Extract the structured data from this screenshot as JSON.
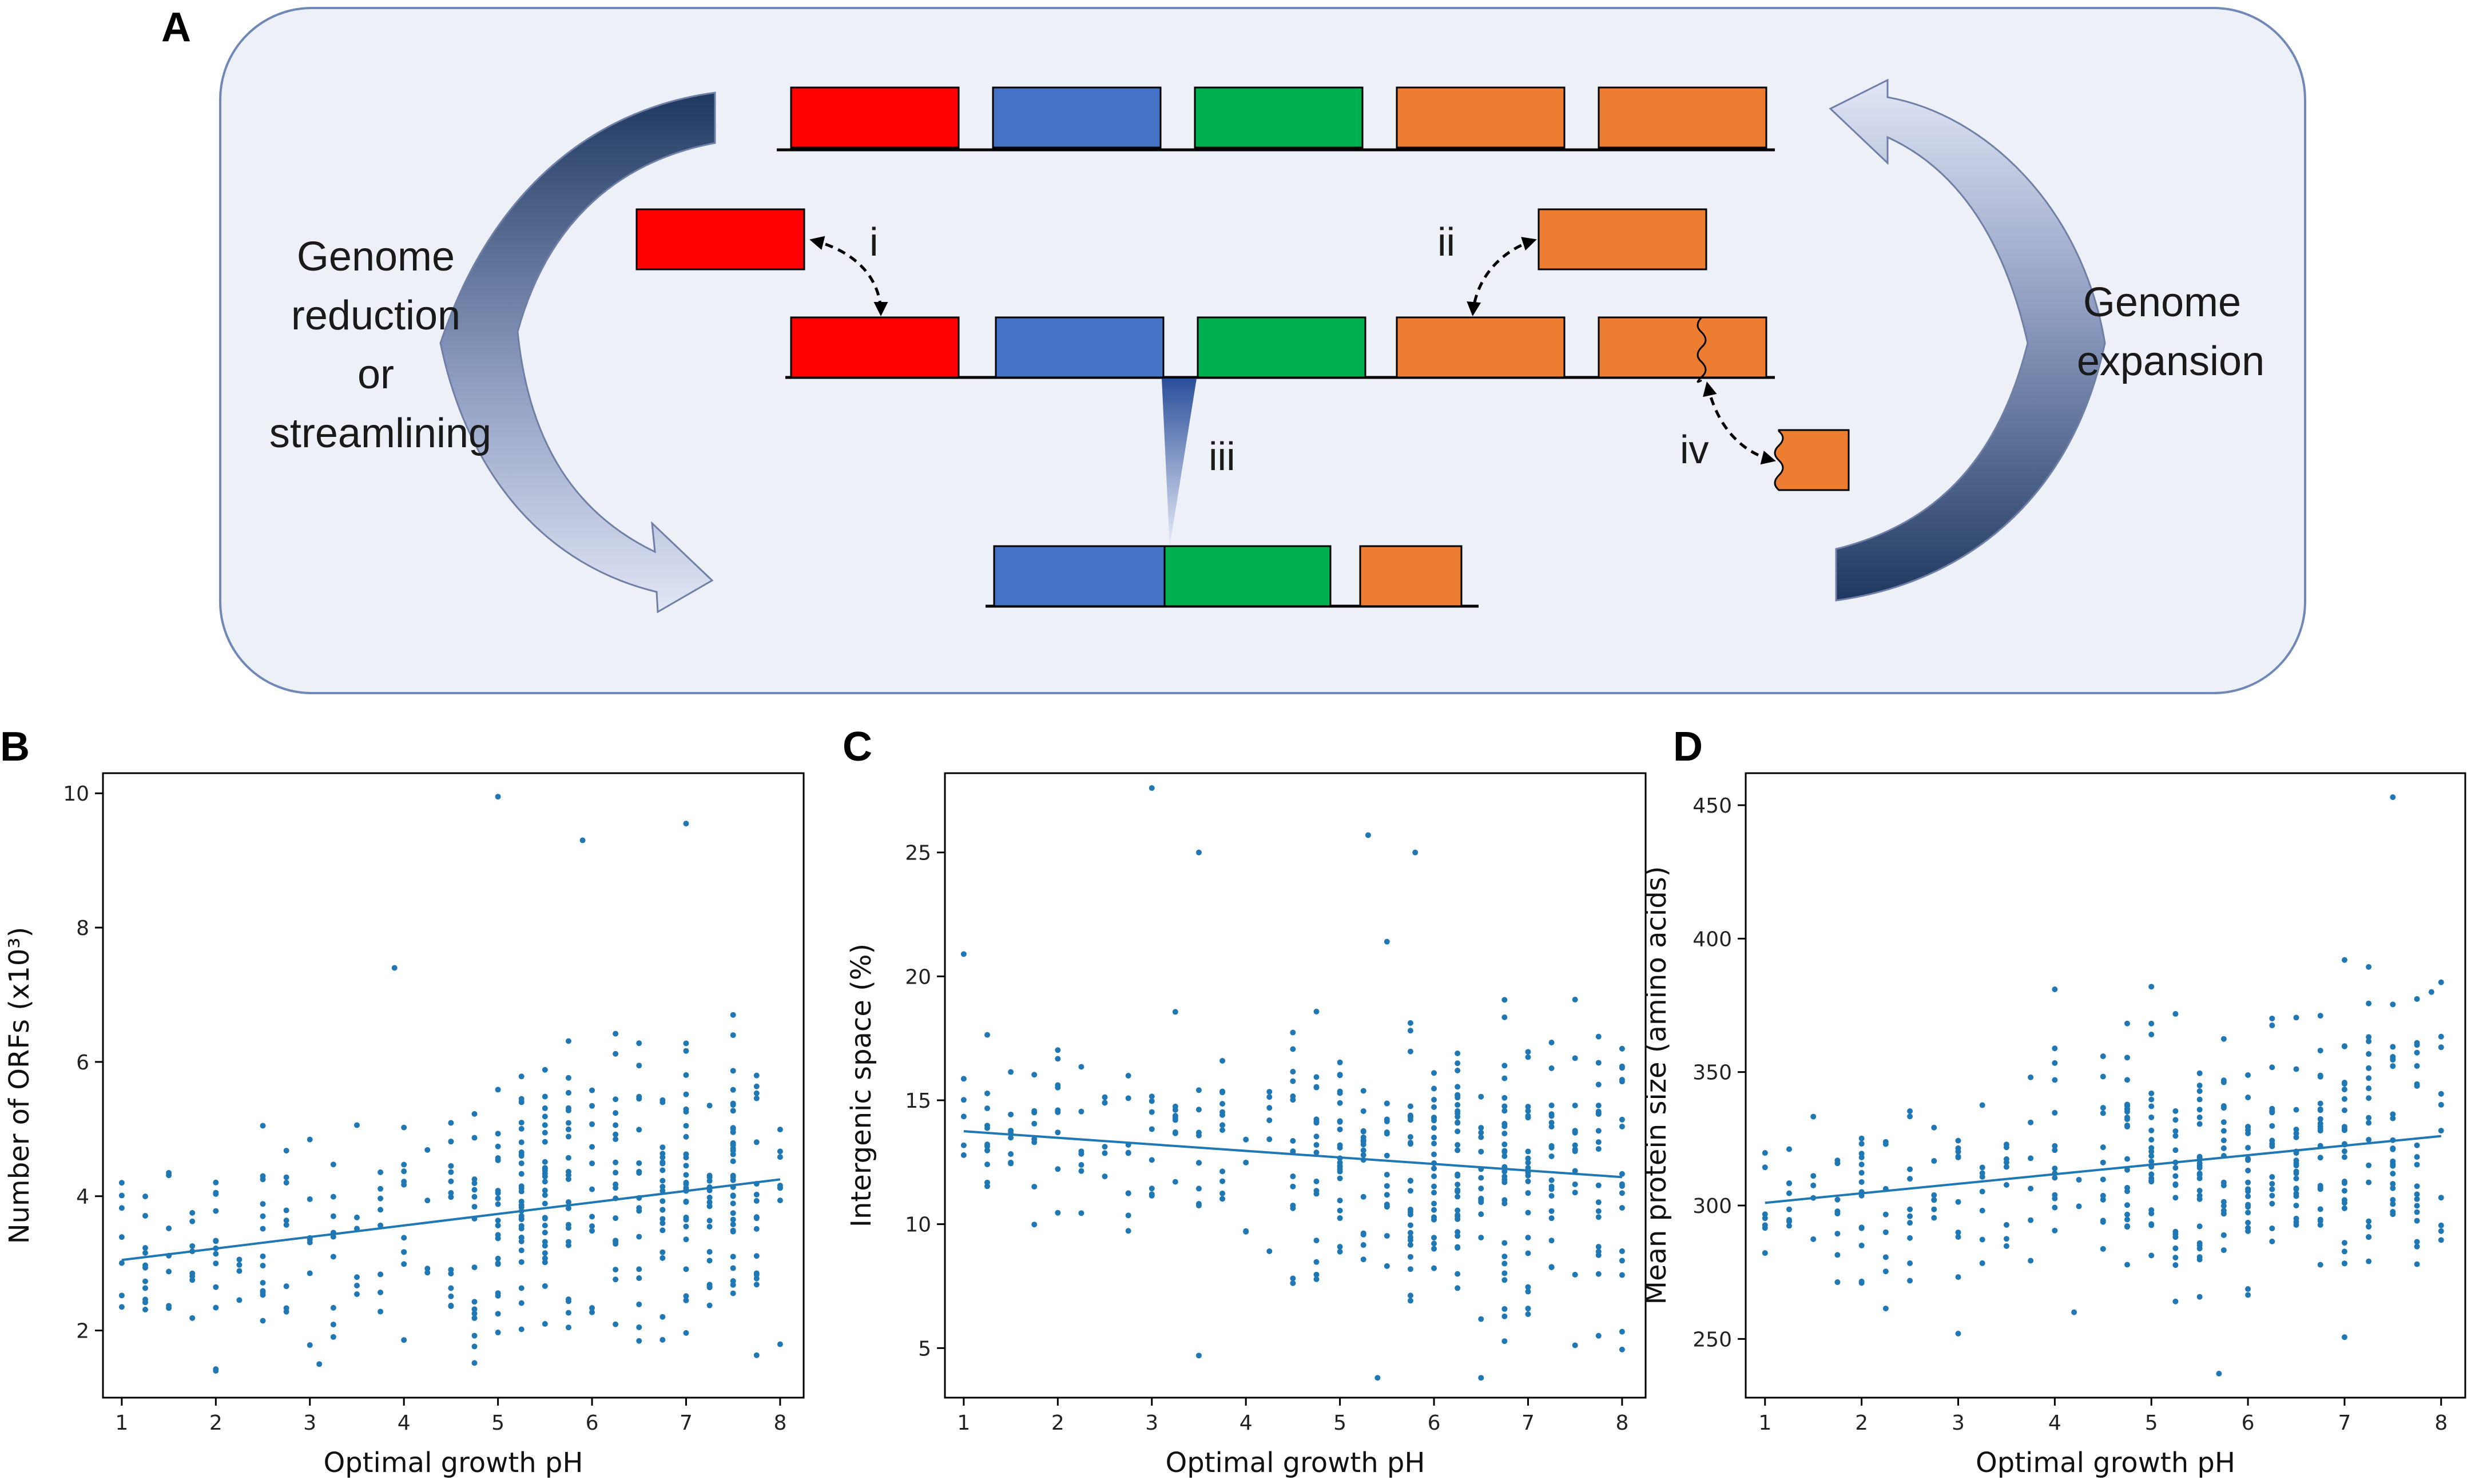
{
  "figure": {
    "panel_letters": {
      "a": "A",
      "b": "B",
      "c": "C",
      "d": "D"
    }
  },
  "diagram": {
    "left_label": [
      "Genome",
      "reduction",
      "or",
      "streamlining"
    ],
    "right_label": [
      "Genome",
      "expansion"
    ],
    "roman": {
      "i": "i",
      "ii": "ii",
      "iii": "iii",
      "iv": "iv"
    },
    "colors": {
      "panel_fill": "#eef0f8",
      "panel_border": "#6f88b8",
      "red": "#ff0000",
      "blue": "#4472c4",
      "green": "#00b050",
      "orange": "#ed7d31",
      "arrow_dark": "#1f3860",
      "arrow_light": "#d6dcf0"
    }
  },
  "chart_data": [
    {
      "panel": "B",
      "type": "scatter",
      "xlabel": "Optimal growth pH",
      "ylabel": "Number of ORFs (x10³)",
      "xlim": [
        0.8,
        8.25
      ],
      "ylim": [
        1.0,
        10.3
      ],
      "xticks": [
        1,
        2,
        3,
        4,
        5,
        6,
        7,
        8
      ],
      "yticks": [
        2,
        4,
        6,
        8,
        10
      ],
      "trendline": {
        "x": [
          1,
          8
        ],
        "y": [
          3.05,
          4.25
        ]
      },
      "highlight_points": [
        [
          5.0,
          9.95
        ],
        [
          5.9,
          9.3
        ],
        [
          7.0,
          9.55
        ],
        [
          3.9,
          7.4
        ],
        [
          7.5,
          6.7
        ],
        [
          2.5,
          5.05
        ],
        [
          1.0,
          4.2
        ],
        [
          2.0,
          1.4
        ],
        [
          3.1,
          1.5
        ]
      ],
      "color": "#1f77b4"
    },
    {
      "panel": "C",
      "type": "scatter",
      "xlabel": "Optimal growth pH",
      "ylabel": "Intergenic space (%)",
      "xlim": [
        0.8,
        8.25
      ],
      "ylim": [
        3.0,
        28.2
      ],
      "xticks": [
        1,
        2,
        3,
        4,
        5,
        6,
        7,
        8
      ],
      "yticks": [
        5,
        10,
        15,
        20,
        25
      ],
      "trendline": {
        "x": [
          1,
          8
        ],
        "y": [
          13.75,
          11.9
        ]
      },
      "highlight_points": [
        [
          3.0,
          27.6
        ],
        [
          3.5,
          25.0
        ],
        [
          5.3,
          25.7
        ],
        [
          5.8,
          25.0
        ],
        [
          1.0,
          20.9
        ],
        [
          5.5,
          21.4
        ],
        [
          6.5,
          3.8
        ],
        [
          5.4,
          3.8
        ],
        [
          3.5,
          4.7
        ]
      ],
      "color": "#1f77b4"
    },
    {
      "panel": "D",
      "type": "scatter",
      "xlabel": "Optimal growth pH",
      "ylabel": "Mean protein size (amino acids)",
      "xlim": [
        0.8,
        8.25
      ],
      "ylim": [
        228,
        462
      ],
      "xticks": [
        1,
        2,
        3,
        4,
        5,
        6,
        7,
        8
      ],
      "yticks": [
        250,
        300,
        350,
        400,
        450
      ],
      "trendline": {
        "x": [
          1,
          8
        ],
        "y": [
          301,
          326
        ]
      },
      "highlight_points": [
        [
          7.5,
          453
        ],
        [
          7.0,
          392
        ],
        [
          7.9,
          380
        ],
        [
          4.0,
          381
        ],
        [
          5.0,
          382
        ],
        [
          3.0,
          252
        ],
        [
          5.7,
          237
        ],
        [
          4.2,
          260
        ]
      ],
      "color": "#1f77b4"
    }
  ]
}
